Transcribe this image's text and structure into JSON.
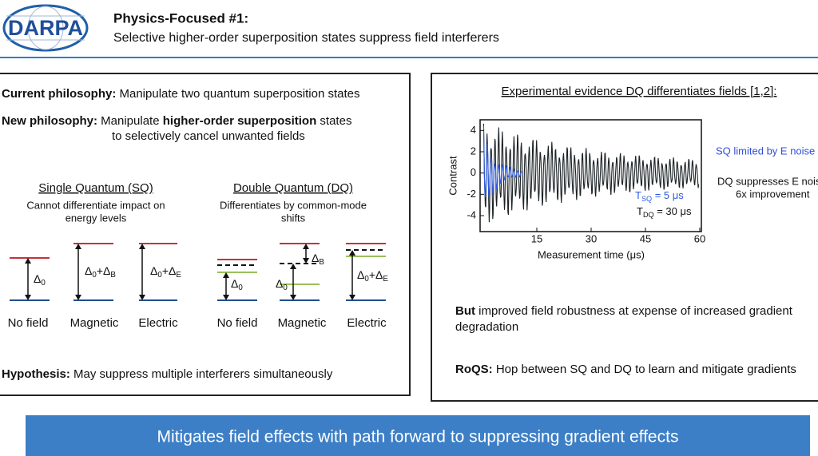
{
  "header": {
    "logo": "DARPA",
    "title": "Physics-Focused #1:",
    "subtitle": "Selective higher-order superposition states suppress field interferers"
  },
  "left_panel": {
    "current": {
      "label": "Current philosophy:",
      "text": "Manipulate two quantum superposition states"
    },
    "new": {
      "label": "New philosophy:",
      "text_before": "Manipulate",
      "bold": "higher-order superposition",
      "text_after": "states",
      "line2": "to selectively cancel unwanted fields"
    },
    "sq": {
      "title": "Single Quantum (SQ)",
      "desc": [
        "Cannot differentiate impact on",
        "energy levels"
      ],
      "levels": [
        "No field",
        "Magnetic",
        "Electric"
      ],
      "deltas": [
        [
          {
            "base": "Δ",
            "sub": "0"
          }
        ],
        [
          {
            "base": "Δ",
            "sub": "0"
          },
          {
            "base": "+Δ",
            "sub": "B"
          }
        ],
        [
          {
            "base": "Δ",
            "sub": "0"
          },
          {
            "base": "+Δ",
            "sub": "E"
          }
        ]
      ]
    },
    "dq": {
      "title": "Double Quantum (DQ)",
      "desc": [
        "Differentiates by common-mode",
        "shifts"
      ],
      "levels": [
        "No field",
        "Magnetic",
        "Electric"
      ],
      "deltas": [
        [
          {
            "base": "Δ",
            "sub": "0"
          }
        ],
        [
          {
            "base": "Δ",
            "sub": "0"
          }
        ],
        [
          {
            "base": "Δ",
            "sub": "0"
          },
          {
            "base": "+Δ",
            "sub": "E"
          }
        ]
      ],
      "shift": [
        {
          "base": "Δ",
          "sub": "B"
        }
      ]
    },
    "hypothesis": {
      "label": "Hypothesis:",
      "text": "May suppress multiple interferers simultaneously"
    }
  },
  "right_panel": {
    "chart_title": "Experimental evidence DQ differentiates fields [1,2]:",
    "chart": {
      "type": "line",
      "x_label": "Measurement time (μs)",
      "y_label": "Contrast",
      "xlim": [
        0,
        60
      ],
      "ylim": [
        -5.5,
        5
      ],
      "xticks": [
        15,
        30,
        45,
        60
      ],
      "yticks": [
        4,
        2,
        0,
        -2,
        -4
      ],
      "t_sq": [
        {
          "base": "T",
          "sub": "SQ",
          "rest": " = 5 μs"
        }
      ],
      "t_dq": [
        {
          "base": "T",
          "sub": "DQ",
          "rest": " = 30 μs"
        }
      ]
    },
    "legend_sq": "SQ limited by E noise",
    "legend_dq": [
      "DQ suppresses E noise",
      "6x improvement"
    ],
    "but": {
      "label": "But",
      "text": "improved field robustness at expense of increased gradient",
      "line2": "degradation"
    },
    "roqs": {
      "label": "RoQS:",
      "text": "Hop between SQ and DQ to learn and mitigate gradients"
    }
  },
  "banner": "Mitigates field effects with path forward to suppressing gradient effects"
}
